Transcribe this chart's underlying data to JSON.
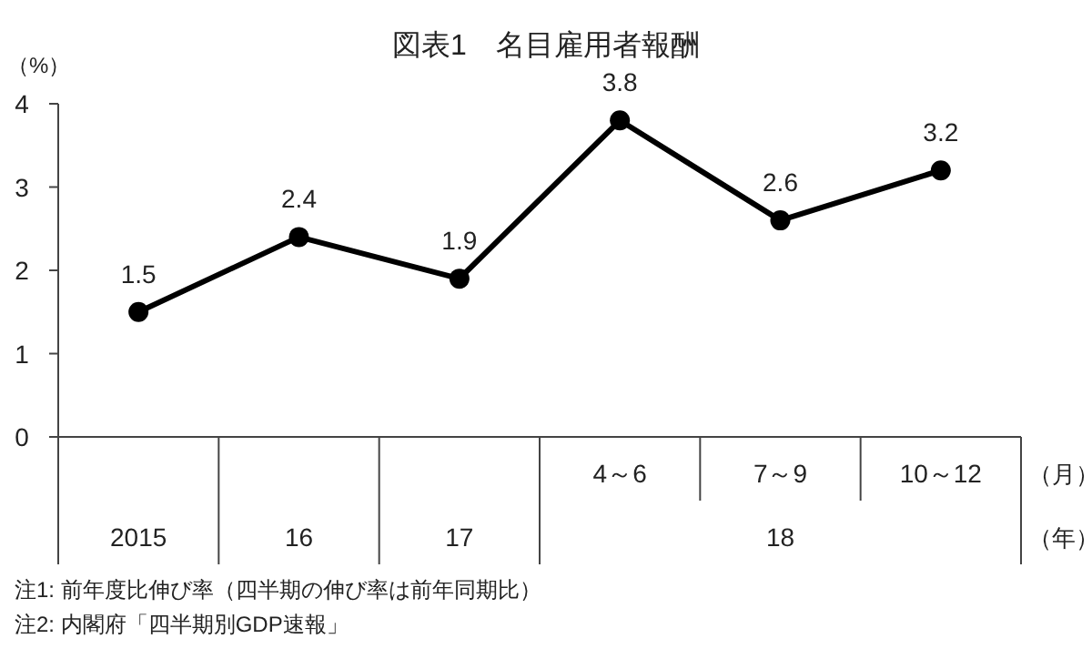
{
  "chart_data": {
    "type": "line",
    "title": "図表1　名目雇用者報酬",
    "ylabel": "（%）",
    "categories": [
      "2015",
      "16",
      "17",
      "4～6",
      "7～9",
      "10～12"
    ],
    "series": [
      {
        "color": "#000000",
        "values": [
          1.5,
          2.4,
          1.9,
          3.8,
          2.6,
          3.2
        ]
      }
    ],
    "ylim": [
      0,
      4
    ],
    "yticks": [
      0,
      1,
      2,
      3,
      4
    ],
    "grid": false,
    "marker": "circle",
    "line_style": "solid",
    "data_labels": true,
    "annotations": [
      "18",
      "（月）",
      "（年）",
      "注1: 前年度比伸び率（四半期の伸び率は前年同期比）",
      "注2: 内閣府「四半期別GDP速報」"
    ]
  }
}
